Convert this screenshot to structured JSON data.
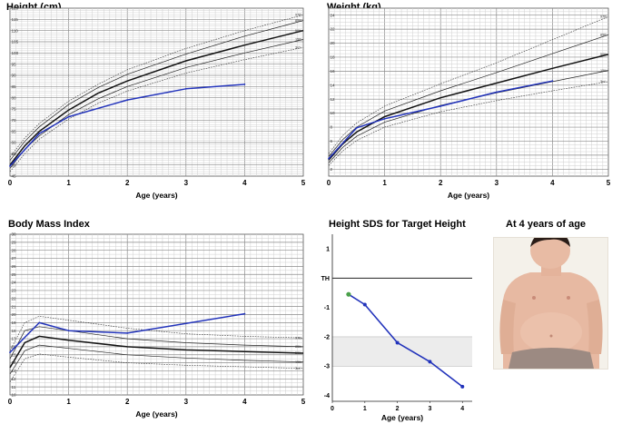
{
  "photo_caption": "At 4 years of age",
  "colors": {
    "patient": "#2233bb",
    "first_point": "#4aa04a",
    "band": "#ececec"
  },
  "chart_data": [
    {
      "id": "height",
      "type": "line",
      "title": "Height (cm)",
      "xlabel": "Age (years)",
      "xlim": [
        0,
        5
      ],
      "ylim": [
        45,
        120
      ],
      "x_ticks": [
        0,
        1,
        2,
        3,
        4,
        5
      ],
      "y_ticks": [
        45,
        50,
        55,
        60,
        65,
        70,
        75,
        80,
        85,
        90,
        95,
        100,
        105,
        110,
        115,
        120
      ],
      "reference": [
        {
          "name": "97th",
          "style": "dotted",
          "x": [
            0,
            0.25,
            0.5,
            1,
            1.5,
            2,
            3,
            4,
            5
          ],
          "values": [
            53.5,
            62,
            68.5,
            78.5,
            86,
            92.5,
            102,
            110,
            117
          ]
        },
        {
          "name": "85th",
          "style": "solid",
          "x": [
            0,
            0.25,
            0.5,
            1,
            1.5,
            2,
            3,
            4,
            5
          ],
          "values": [
            52,
            60.5,
            67,
            77,
            84.5,
            90.5,
            99.5,
            107.5,
            114.5
          ]
        },
        {
          "name": "50th",
          "style": "bold",
          "x": [
            0,
            0.25,
            0.5,
            1,
            1.5,
            2,
            3,
            4,
            5
          ],
          "values": [
            50,
            58.5,
            65,
            74.5,
            82,
            87.5,
            96.5,
            103.5,
            110
          ]
        },
        {
          "name": "15th",
          "style": "solid",
          "x": [
            0,
            0.25,
            0.5,
            1,
            1.5,
            2,
            3,
            4,
            5
          ],
          "values": [
            48.5,
            57,
            63,
            72.5,
            79.5,
            85,
            93.5,
            100,
            106
          ]
        },
        {
          "name": "3rd",
          "style": "dotted",
          "x": [
            0,
            0.25,
            0.5,
            1,
            1.5,
            2,
            3,
            4,
            5
          ],
          "values": [
            47,
            55,
            61.5,
            70.5,
            77.5,
            83,
            91,
            97,
            102.5
          ]
        }
      ],
      "patient": {
        "x": [
          0,
          0.5,
          1,
          2,
          3,
          4
        ],
        "values": [
          49.5,
          64,
          71.5,
          79,
          84,
          86
        ]
      }
    },
    {
      "id": "weight",
      "type": "line",
      "title": "Weight (kg)",
      "xlabel": "Age (years)",
      "xlim": [
        0,
        5
      ],
      "ylim": [
        1,
        25
      ],
      "x_ticks": [
        0,
        1,
        2,
        3,
        4,
        5
      ],
      "y_ticks": [
        2,
        4,
        6,
        8,
        10,
        12,
        14,
        16,
        18,
        20,
        22,
        24
      ],
      "reference": [
        {
          "name": "97th",
          "style": "dotted",
          "x": [
            0,
            0.25,
            0.5,
            1,
            2,
            3,
            4,
            5
          ],
          "values": [
            4.2,
            6.8,
            8.6,
            11,
            14.2,
            17.2,
            20.5,
            23.8
          ]
        },
        {
          "name": "85th",
          "style": "solid",
          "x": [
            0,
            0.25,
            0.5,
            1,
            2,
            3,
            4,
            5
          ],
          "values": [
            3.8,
            6.2,
            8,
            10.3,
            13.2,
            15.8,
            18.5,
            21.2
          ]
        },
        {
          "name": "50th",
          "style": "bold",
          "x": [
            0,
            0.25,
            0.5,
            1,
            2,
            3,
            4,
            5
          ],
          "values": [
            3.3,
            5.6,
            7.3,
            9.5,
            12.2,
            14.3,
            16.4,
            18.4
          ]
        },
        {
          "name": "15th",
          "style": "solid",
          "x": [
            0,
            0.25,
            0.5,
            1,
            2,
            3,
            4,
            5
          ],
          "values": [
            2.9,
            5.1,
            6.7,
            8.7,
            11.1,
            12.9,
            14.5,
            16.1
          ]
        },
        {
          "name": "3rd",
          "style": "dotted",
          "x": [
            0,
            0.25,
            0.5,
            1,
            2,
            3,
            4,
            5
          ],
          "values": [
            2.5,
            4.6,
            6.1,
            8,
            10.2,
            11.8,
            13.2,
            14.5
          ]
        }
      ],
      "patient": {
        "x": [
          0,
          0.5,
          1,
          2,
          3,
          4
        ],
        "values": [
          3.5,
          7.9,
          9.2,
          11,
          13,
          14.6
        ]
      }
    },
    {
      "id": "bmi",
      "type": "line",
      "title": "Body Mass Index",
      "xlabel": "Age (years)",
      "xlim": [
        0,
        5
      ],
      "ylim": [
        10,
        30
      ],
      "x_ticks": [
        0,
        1,
        2,
        3,
        4,
        5
      ],
      "y_ticks": [
        10,
        11,
        12,
        13,
        14,
        15,
        16,
        17,
        18,
        19,
        20,
        21,
        22,
        23,
        24,
        25,
        26,
        27,
        28,
        29,
        30
      ],
      "reference": [
        {
          "name": "97th",
          "style": "dotted",
          "x": [
            0,
            0.25,
            0.5,
            1,
            2,
            3,
            4,
            5
          ],
          "values": [
            15.5,
            19,
            19.8,
            19.3,
            18.3,
            17.6,
            17.3,
            17.1
          ]
        },
        {
          "name": "85th",
          "style": "solid",
          "x": [
            0,
            0.25,
            0.5,
            1,
            2,
            3,
            4,
            5
          ],
          "values": [
            14.5,
            18,
            18.5,
            18,
            17,
            16.5,
            16.2,
            16
          ]
        },
        {
          "name": "50th",
          "style": "bold",
          "x": [
            0,
            0.25,
            0.5,
            1,
            2,
            3,
            4,
            5
          ],
          "values": [
            13.4,
            16.5,
            17.3,
            16.8,
            16,
            15.6,
            15.4,
            15.2
          ]
        },
        {
          "name": "15th",
          "style": "solid",
          "x": [
            0,
            0.25,
            0.5,
            1,
            2,
            3,
            4,
            5
          ],
          "values": [
            12.6,
            15.5,
            16.2,
            15.8,
            15,
            14.6,
            14.3,
            14.1
          ]
        },
        {
          "name": "3rd",
          "style": "dotted",
          "x": [
            0,
            0.25,
            0.5,
            1,
            2,
            3,
            4,
            5
          ],
          "values": [
            11.6,
            14.5,
            15.1,
            14.7,
            14,
            13.7,
            13.5,
            13.3
          ]
        }
      ],
      "patient": {
        "x": [
          0,
          0.5,
          1,
          2,
          4
        ],
        "values": [
          15.3,
          19,
          18,
          17.7,
          20.1
        ]
      }
    },
    {
      "id": "sds",
      "type": "line",
      "title": "Height SDS for Target Height",
      "xlabel": "Age (years)",
      "xlim": [
        0,
        4.3
      ],
      "ylim": [
        -4.2,
        1.5
      ],
      "x_ticks": [
        0,
        1,
        2,
        3,
        4
      ],
      "y_tick_labels": [
        {
          "value": 1,
          "label": "1"
        },
        {
          "value": 0,
          "label": "TH"
        },
        {
          "value": -1,
          "label": "-1"
        },
        {
          "value": -2,
          "label": "-2"
        },
        {
          "value": -3,
          "label": "-3"
        },
        {
          "value": -4,
          "label": "-4"
        }
      ],
      "target_line": 0,
      "shaded_band": [
        -3,
        -2
      ],
      "patient": {
        "x": [
          0.5,
          1,
          2,
          3,
          4
        ],
        "values": [
          -0.55,
          -0.9,
          -2.2,
          -2.85,
          -3.7
        ]
      }
    }
  ]
}
